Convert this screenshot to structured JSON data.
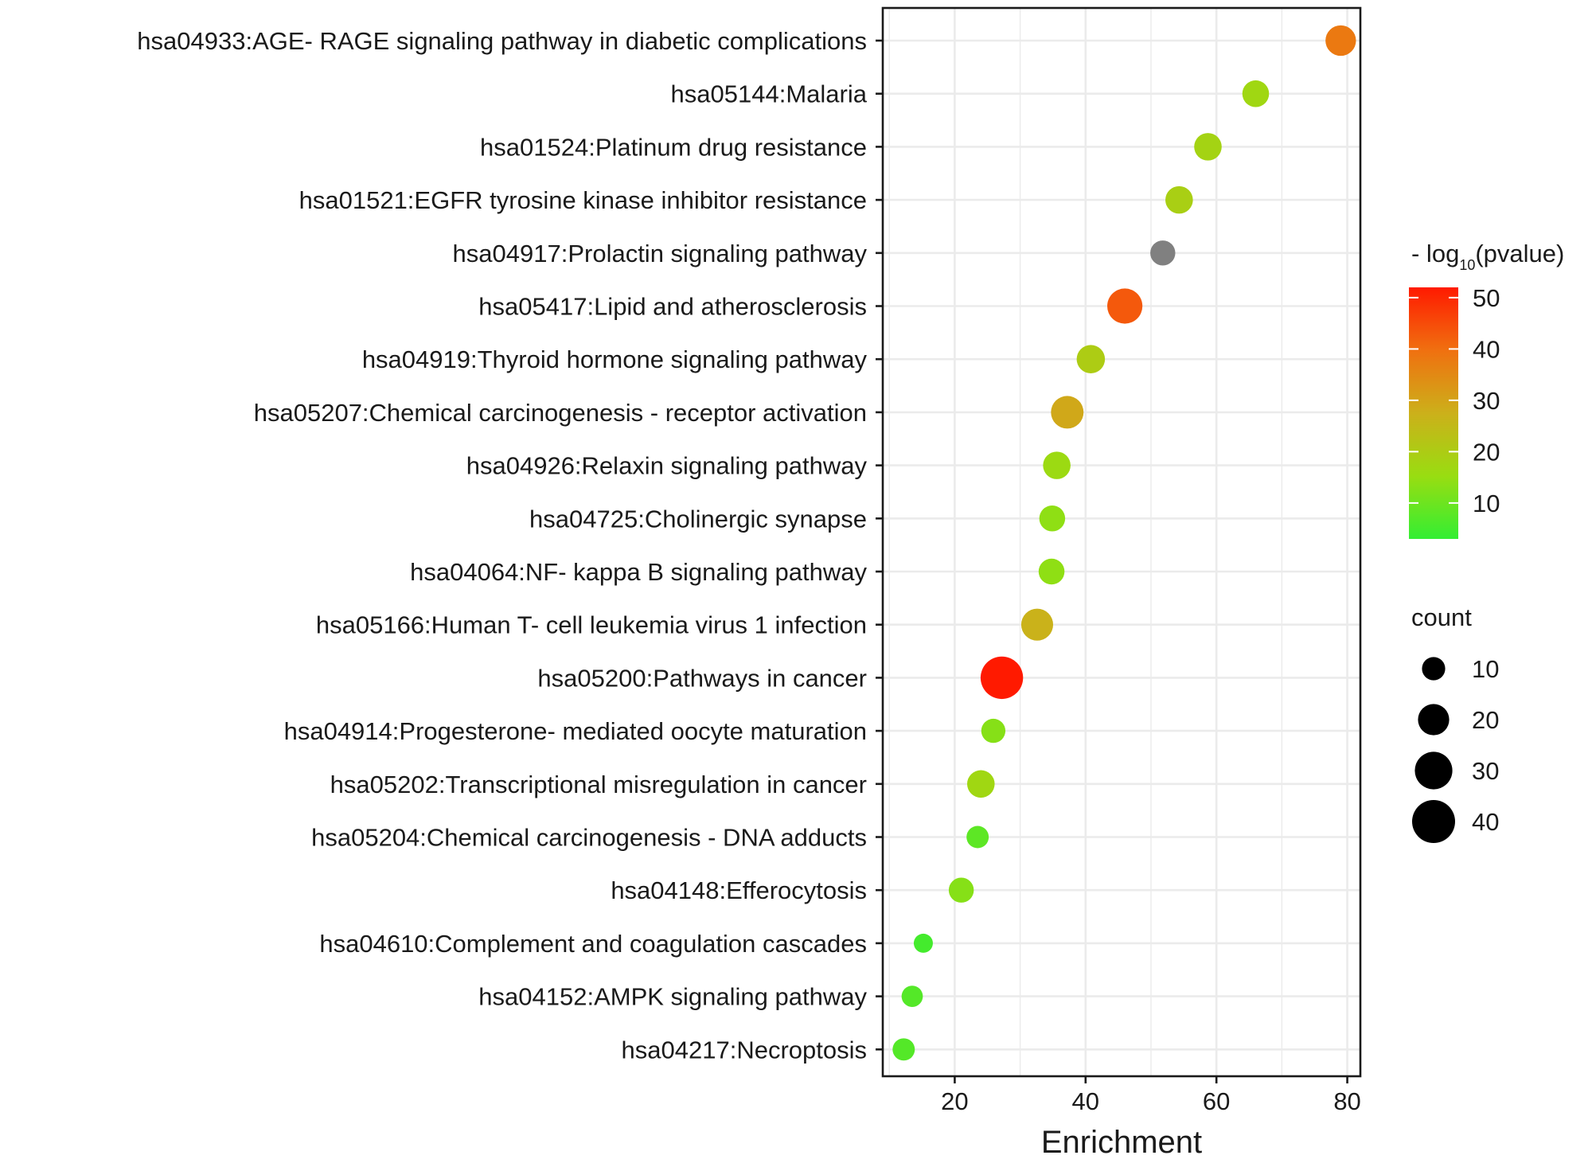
{
  "chart_data": {
    "type": "scatter",
    "xlabel": "Enrichment",
    "ylabel": "",
    "xlim": [
      9,
      82
    ],
    "x_ticks": [
      20,
      40,
      60,
      80
    ],
    "grid": true,
    "legend_position": "right",
    "categories": [
      "hsa04933:AGE- RAGE signaling pathway in diabetic complications",
      "hsa05144:Malaria",
      "hsa01524:Platinum drug resistance",
      "hsa01521:EGFR tyrosine kinase inhibitor resistance",
      "hsa04917:Prolactin signaling pathway",
      "hsa05417:Lipid and atherosclerosis",
      "hsa04919:Thyroid hormone signaling pathway",
      "hsa05207:Chemical carcinogenesis - receptor activation",
      "hsa04926:Relaxin signaling pathway",
      "hsa04725:Cholinergic synapse",
      "hsa04064:NF- kappa B signaling pathway",
      "hsa05166:Human T- cell leukemia virus 1 infection",
      "hsa05200:Pathways in cancer",
      "hsa04914:Progesterone- mediated oocyte maturation",
      "hsa05202:Transcriptional misregulation in cancer",
      "hsa05204:Chemical carcinogenesis - DNA adducts",
      "hsa04148:Efferocytosis",
      "hsa04610:Complement and coagulation cascades",
      "hsa04152:AMPK signaling pathway",
      "hsa04217:Necroptosis"
    ],
    "enrichment": [
      79,
      66,
      58.7,
      54.3,
      51.8,
      46,
      40.8,
      37.2,
      35.6,
      34.9,
      34.8,
      32.6,
      27.2,
      25.9,
      24,
      23.5,
      21,
      15.2,
      13.5,
      12.2
    ],
    "neg_log10_pvalue": [
      38,
      17,
      18,
      19,
      null,
      43,
      20,
      29,
      16,
      14,
      14,
      27,
      52,
      13,
      17,
      8,
      13,
      5,
      7,
      7
    ],
    "count": [
      19,
      14,
      15,
      15,
      12,
      26,
      16,
      22,
      15,
      13,
      13,
      21,
      39,
      11,
      15,
      9,
      12,
      6,
      8,
      9
    ],
    "color_scale": {
      "title_prefix": "- log",
      "title_subscript": "10",
      "title_suffix": "(pvalue)",
      "min": 3,
      "max": 52,
      "ticks": [
        "50",
        "40",
        "30",
        "20",
        "10"
      ],
      "tick_values": [
        50,
        40,
        30,
        20,
        10
      ],
      "gradient_colors": [
        "#33ee33",
        "#99dd11",
        "#ccb01a",
        "#f07010",
        "#ff1a00"
      ],
      "na_color": "#808080"
    },
    "size_legend": {
      "title": "count",
      "labels": [
        "10",
        "20",
        "30",
        "40"
      ],
      "values": [
        10,
        20,
        30,
        40
      ]
    }
  }
}
